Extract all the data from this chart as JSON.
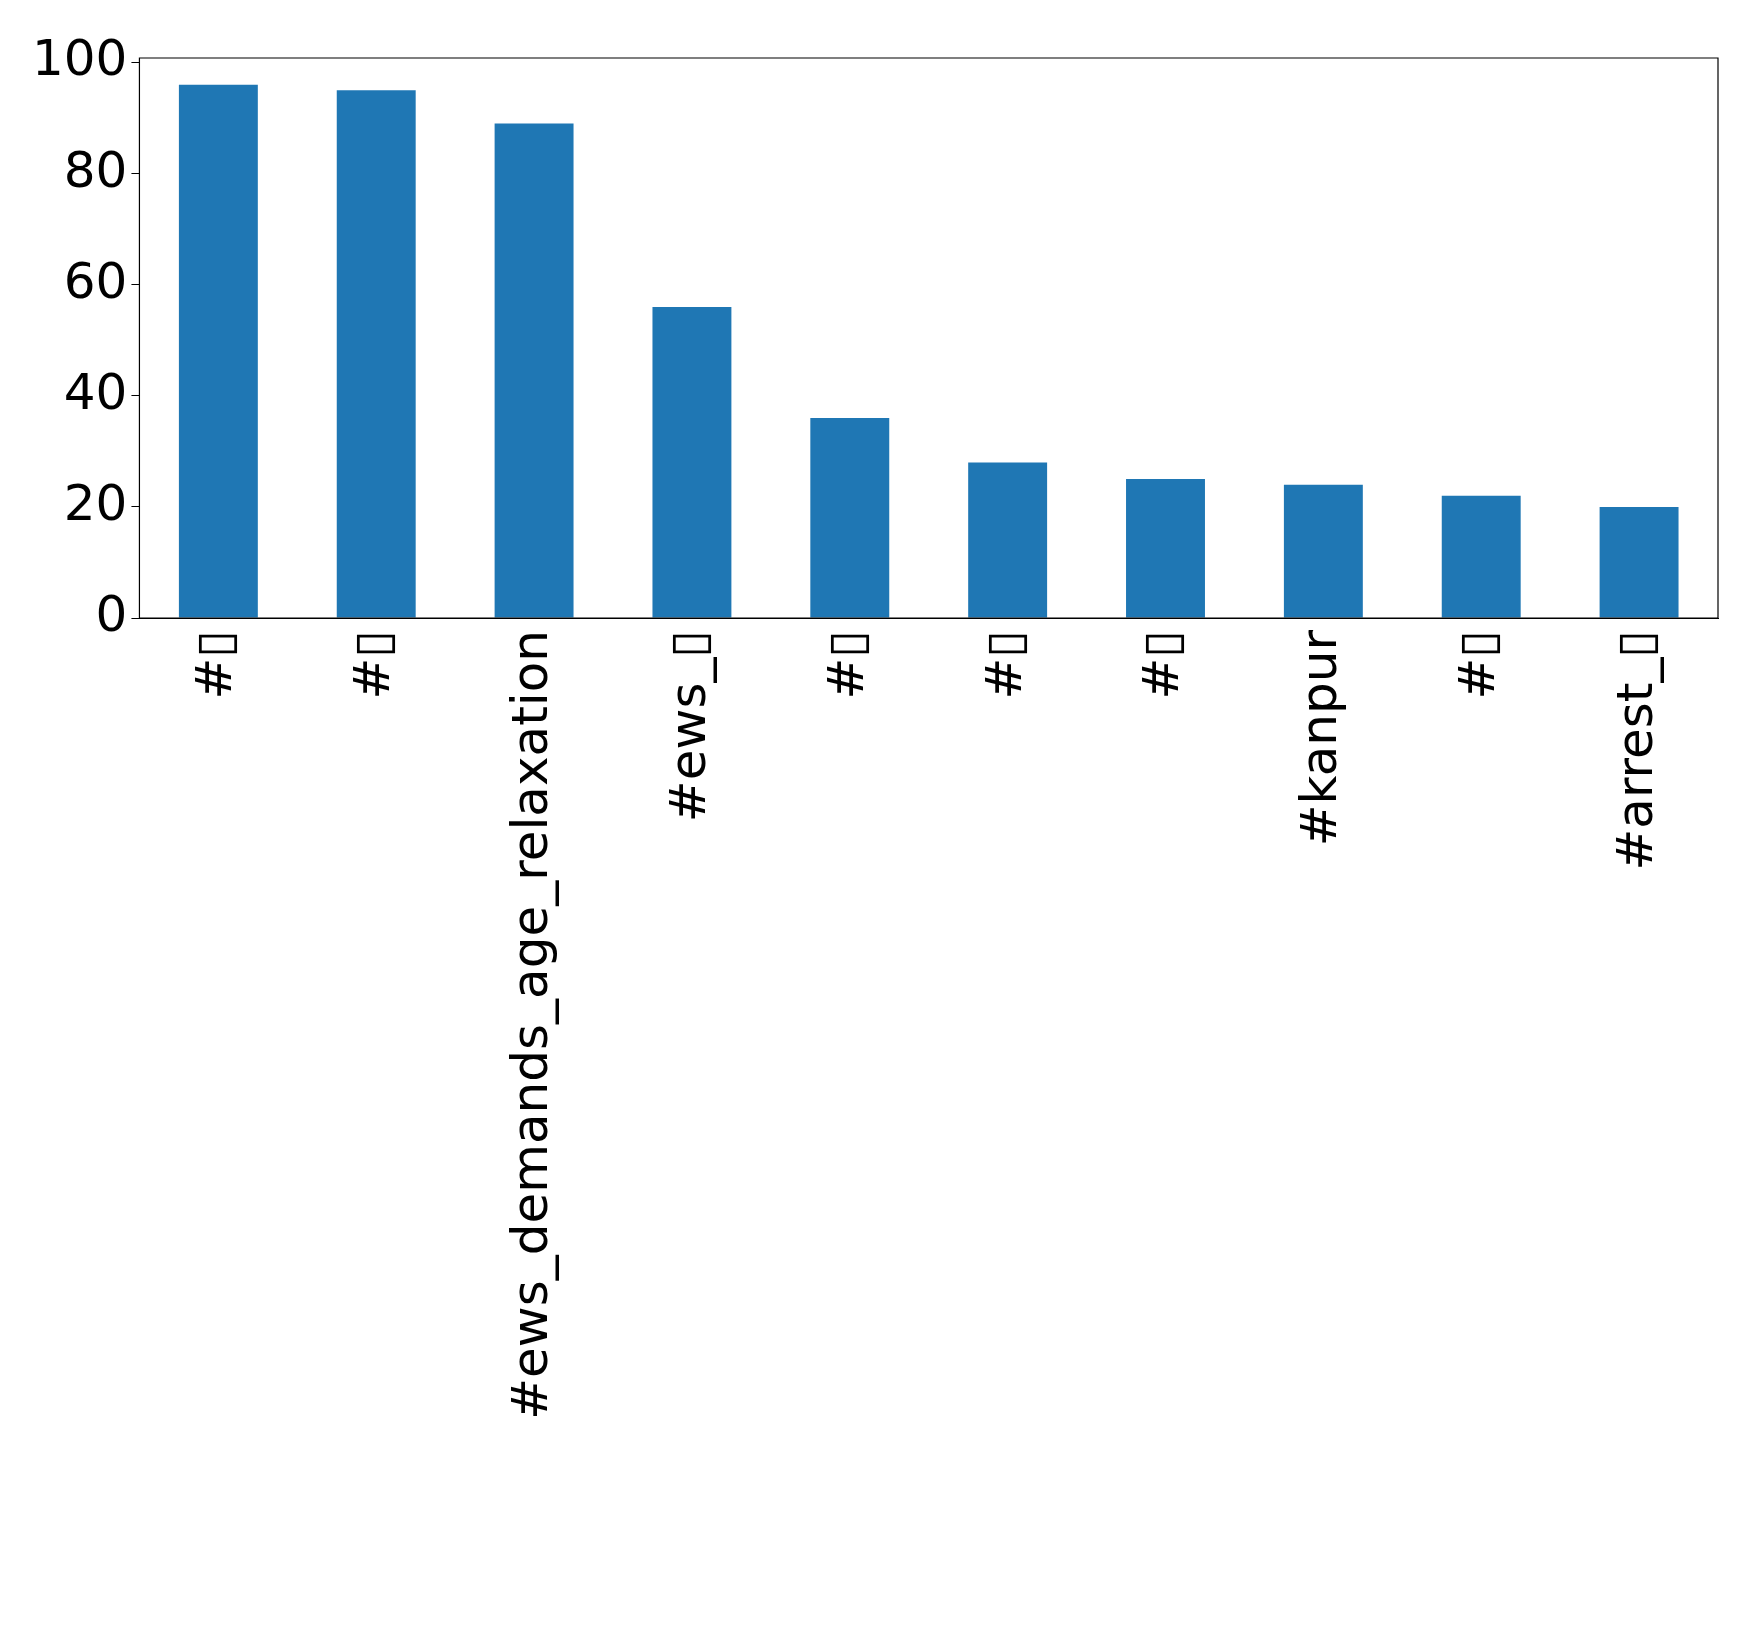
{
  "chart_data": {
    "type": "bar",
    "categories": [
      "#▯",
      "#▯",
      "#ews_demands_age_relaxation",
      "#ews_▯",
      "#▯",
      "#▯",
      "#▯",
      "#kanpur",
      "#▯",
      "#arrest_▯"
    ],
    "values": [
      96,
      95,
      89,
      56,
      36,
      28,
      25,
      24,
      22,
      20
    ],
    "color": "#1f77b4",
    "ylim": [
      0,
      100.8
    ],
    "yticks": [
      0,
      20,
      40,
      60,
      80,
      100
    ],
    "grid": false,
    "legend": false
  }
}
